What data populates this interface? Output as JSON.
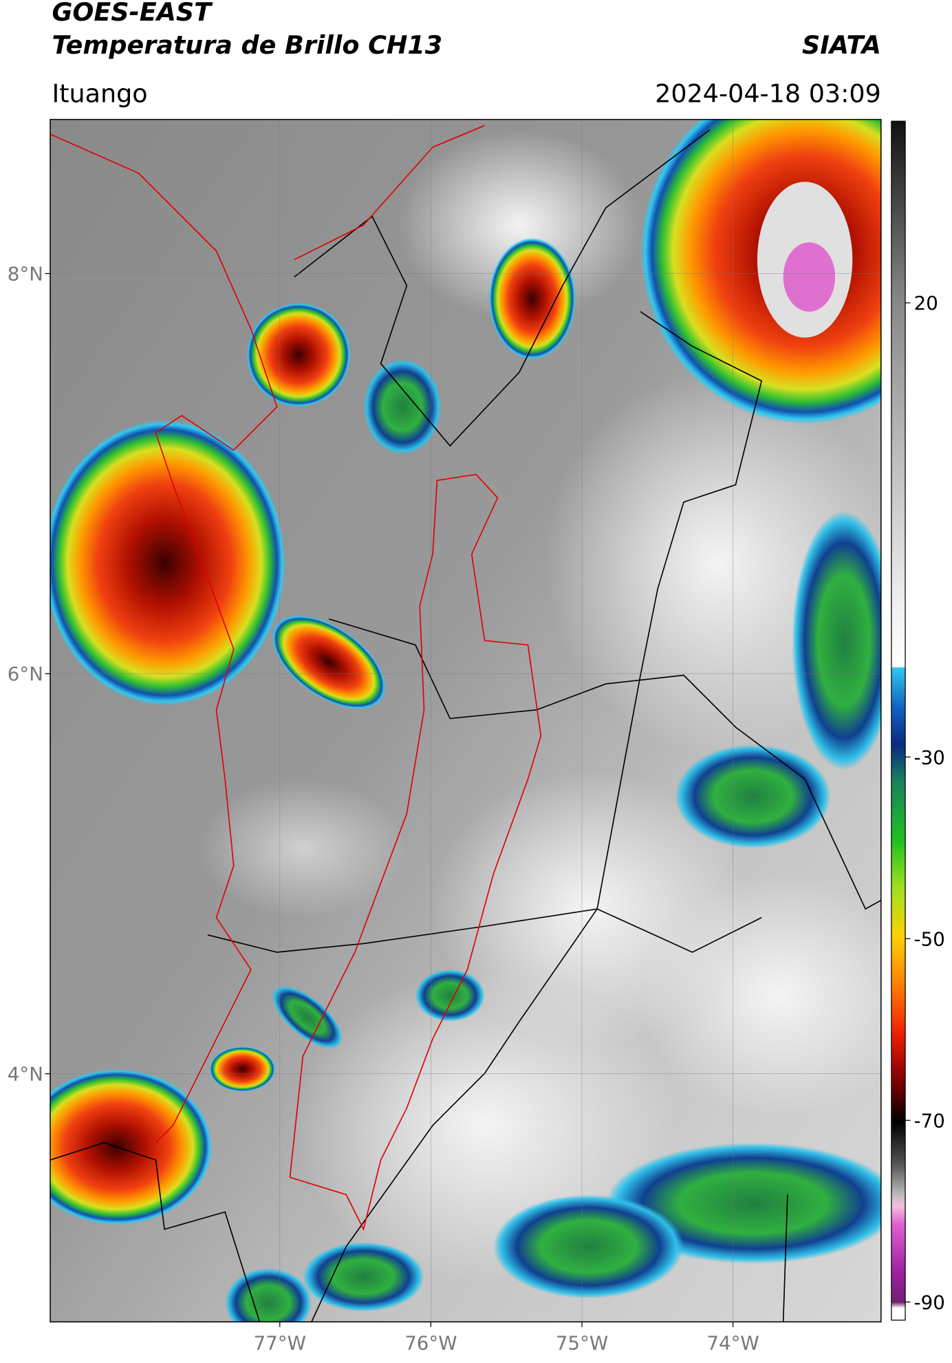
{
  "header": {
    "title": "GOES-EAST",
    "subtitle": "Temperatura de Brillo CH13",
    "brand": "SIATA",
    "location": "Ituango",
    "datetime": "2024-04-18 03:09"
  },
  "map": {
    "xlim": [
      -78.52,
      -73.02
    ],
    "ylim": [
      2.76,
      8.77
    ],
    "xticks": [
      {
        "value": -77,
        "label": "77°W"
      },
      {
        "value": -76,
        "label": "76°W"
      },
      {
        "value": -75,
        "label": "75°W"
      },
      {
        "value": -74,
        "label": "74°W"
      }
    ],
    "yticks": [
      {
        "value": 8,
        "label": "8°N"
      },
      {
        "value": 6,
        "label": "6°N"
      },
      {
        "value": 4,
        "label": "4°N"
      }
    ],
    "grid": true
  },
  "colorbar": {
    "lim": [
      -92,
      40
    ],
    "ticks": [
      20,
      -30,
      -50,
      -70,
      -90
    ]
  }
}
